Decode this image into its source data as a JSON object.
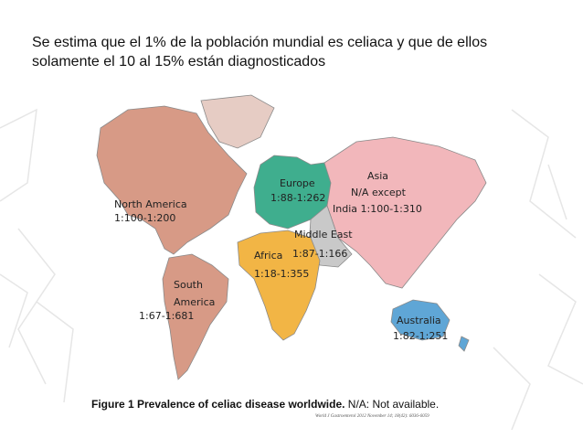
{
  "headline": {
    "line1": "Se estima que el 1% de la población mundial es celiaca y que de ellos",
    "line2": "solamente el 10 al 15% están diagnosticados"
  },
  "map": {
    "regions": [
      {
        "name": "North America",
        "value": "1:100-1:200",
        "color": "#d79a86"
      },
      {
        "name": "Europe",
        "value": "1:88-1:262",
        "color": "#3fae8e"
      },
      {
        "name": "Asia",
        "value": "N/A except",
        "value2": "India 1:100-1:310",
        "color": "#f2b7bb"
      },
      {
        "name": "Middle East",
        "value": "1:87-1:166",
        "color": "#c9c9c9"
      },
      {
        "name": "Africa",
        "value": "1:18-1:355",
        "color": "#f2b545"
      },
      {
        "name": "South",
        "name2": "America",
        "value": "1:67-1:681",
        "color": "#d79a86"
      },
      {
        "name": "Australia",
        "value": "1:82-1:251",
        "color": "#5fa6d6"
      }
    ],
    "greenland_color": "#e6ccc4"
  },
  "caption": {
    "title": "Figure 1  Prevalence of celiac disease worldwide.",
    "note": "N/A: Not available.",
    "citation": "World J Gastroenterol  2012 November 14; 18(42): 6036-6059"
  }
}
